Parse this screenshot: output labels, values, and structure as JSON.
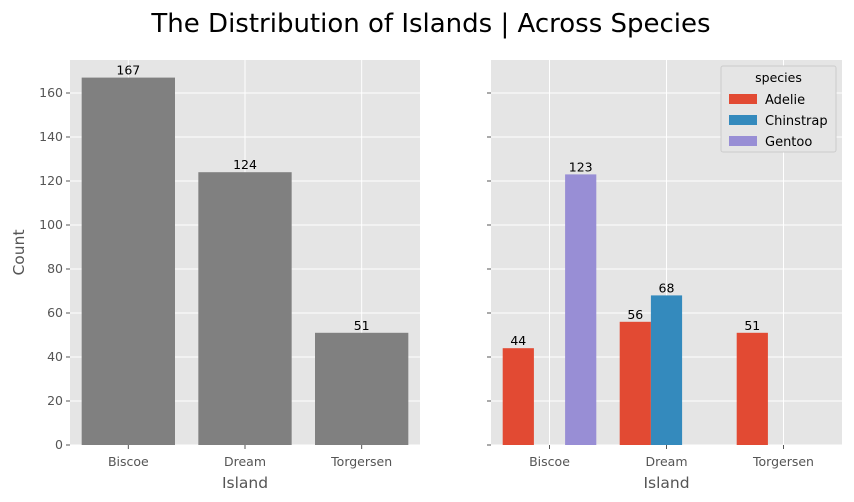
{
  "figure": {
    "title": "The Distribution of Islands | Across Species"
  },
  "chart_data": [
    {
      "type": "bar",
      "categories": [
        "Biscoe",
        "Dream",
        "Torgersen"
      ],
      "values": [
        167,
        124,
        51
      ],
      "bar_labels": [
        "167",
        "124",
        "51"
      ],
      "xlabel": "Island",
      "ylabel": "Count",
      "ylim": [
        0,
        175
      ],
      "yticks": [
        0,
        20,
        40,
        60,
        80,
        100,
        120,
        140,
        160
      ],
      "grid": true,
      "color": "#808080"
    },
    {
      "type": "bar",
      "categories": [
        "Biscoe",
        "Dream",
        "Torgersen"
      ],
      "series": [
        {
          "name": "Adelie",
          "color": "#E24A33",
          "values": [
            44,
            56,
            51
          ],
          "labels": [
            "44",
            "56",
            "51"
          ]
        },
        {
          "name": "Chinstrap",
          "color": "#348ABD",
          "values": [
            0,
            68,
            0
          ],
          "labels": [
            "",
            "68",
            ""
          ]
        },
        {
          "name": "Gentoo",
          "color": "#988ED5",
          "values": [
            123,
            0,
            0
          ],
          "labels": [
            "123",
            "",
            ""
          ]
        }
      ],
      "xlabel": "Island",
      "ylabel": "",
      "ylim": [
        0,
        175
      ],
      "shared_y": true,
      "grid": true,
      "legend": {
        "title": "species",
        "position": "top-right"
      }
    }
  ]
}
